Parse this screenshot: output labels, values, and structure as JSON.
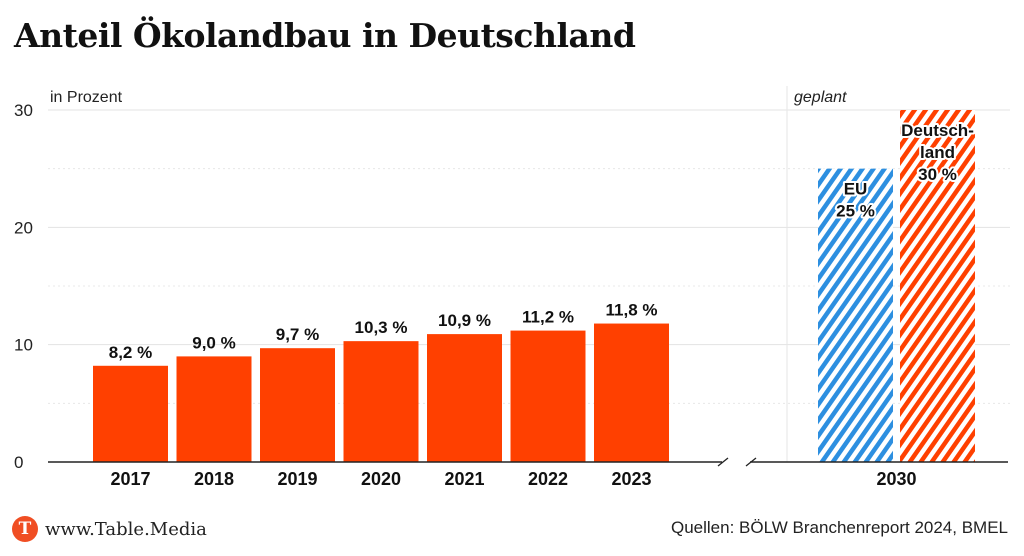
{
  "title": "Anteil Ökolandbau in Deutschland",
  "footer": {
    "logo_letter": "T",
    "site": "www.Table.Media",
    "source": "Quellen: BÖLW Branchenreport 2024, BMEL"
  },
  "colors": {
    "bar": "#ff4000",
    "eu": "#2d8fe0",
    "axis": "#222222",
    "grid": "#e3e3e3"
  },
  "chart_data": {
    "type": "bar",
    "unit_label": "in Prozent",
    "ylim": [
      0,
      30
    ],
    "yticks": [
      0,
      10,
      20,
      30
    ],
    "grid": true,
    "categories": [
      "2017",
      "2018",
      "2019",
      "2020",
      "2021",
      "2022",
      "2023"
    ],
    "values": [
      8.2,
      9.0,
      9.7,
      10.3,
      10.9,
      11.2,
      11.8
    ],
    "value_labels": [
      "8,2 %",
      "9,0 %",
      "9,7 %",
      "10,3 %",
      "10,9 %",
      "11,2 %",
      "11,8 %"
    ],
    "planned": {
      "section_label": "geplant",
      "category": "2030",
      "bars": [
        {
          "name": "EU",
          "value": 25,
          "label_lines": [
            "EU",
            "25 %"
          ],
          "pattern": "striped",
          "color": "#2d8fe0"
        },
        {
          "name": "Deutschland",
          "value": 30,
          "label_lines": [
            "Deutsch-",
            "land",
            "30 %"
          ],
          "pattern": "striped",
          "color": "#ff4000"
        }
      ]
    }
  }
}
